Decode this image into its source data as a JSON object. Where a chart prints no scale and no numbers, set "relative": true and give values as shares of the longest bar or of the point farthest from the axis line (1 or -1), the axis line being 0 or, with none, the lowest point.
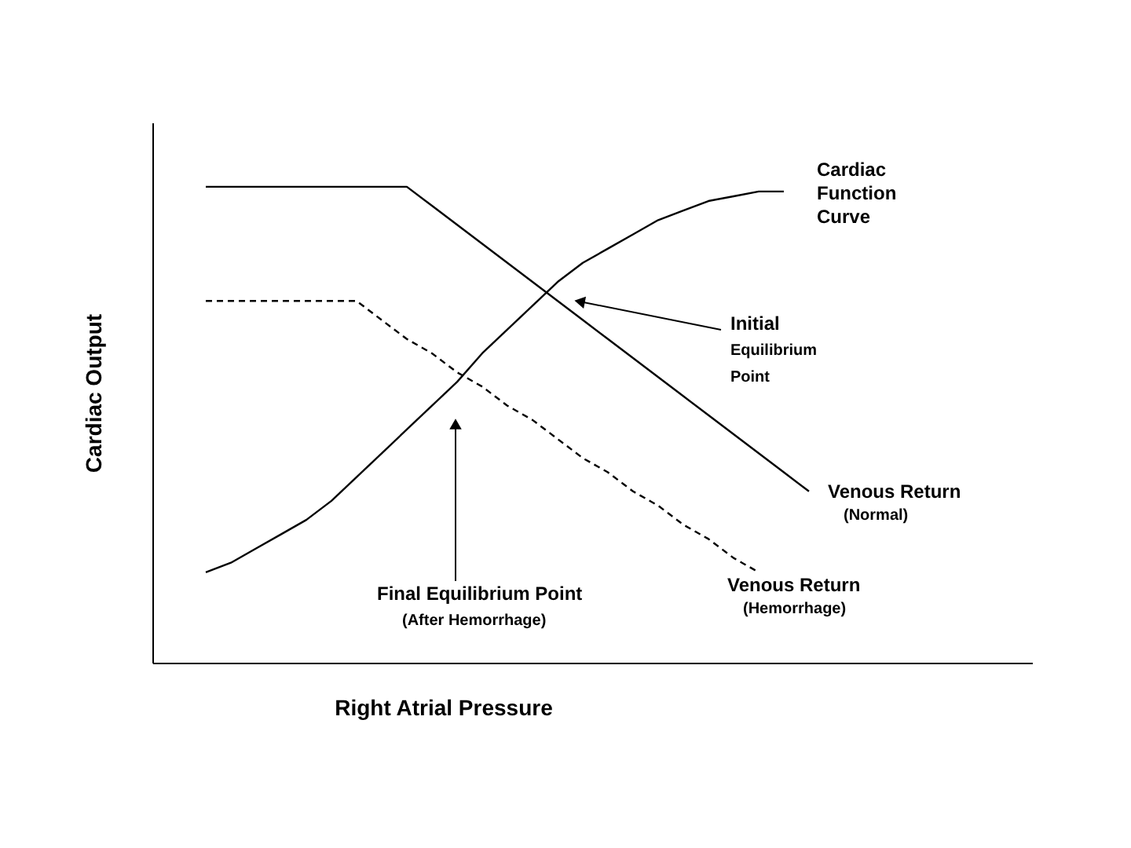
{
  "chart_data": {
    "type": "line",
    "relative": true,
    "grid": false,
    "tick_labels": false,
    "xlabel": "Right Atrial Pressure",
    "ylabel": "Cardiac Output",
    "categories": [
      null,
      null,
      null,
      null,
      null,
      null,
      null,
      null,
      null,
      null,
      null,
      null,
      null,
      null,
      null,
      null,
      null,
      null,
      null,
      null,
      null,
      null,
      null,
      null,
      null
    ],
    "series": [
      {
        "name": "Cardiac Function Curve",
        "color": "#000000",
        "line_style": "solid",
        "values": [
          0.19,
          0.21,
          0.24,
          0.27,
          0.3,
          0.34,
          0.39,
          0.44,
          0.49,
          0.54,
          0.59,
          0.65,
          0.7,
          0.75,
          0.8,
          0.84,
          0.87,
          0.9,
          0.93,
          0.95,
          0.97,
          0.98,
          0.99,
          0.99,
          null
        ]
      },
      {
        "name": "Venous Return (Normal)",
        "color": "#000000",
        "line_style": "solid",
        "values": [
          1.0,
          1.0,
          1.0,
          1.0,
          1.0,
          1.0,
          1.0,
          1.0,
          1.0,
          0.96,
          0.92,
          0.88,
          0.84,
          0.8,
          0.76,
          0.72,
          0.68,
          0.64,
          0.6,
          0.56,
          0.52,
          0.48,
          0.44,
          0.4,
          0.36
        ]
      },
      {
        "name": "Venous Return (Hemorrhage)",
        "color": "#000000",
        "line_style": "dashed",
        "values": [
          0.76,
          0.76,
          0.76,
          0.76,
          0.76,
          0.76,
          0.76,
          0.72,
          0.68,
          0.65,
          0.61,
          0.58,
          0.54,
          0.51,
          0.47,
          0.43,
          0.4,
          0.36,
          0.33,
          0.29,
          0.26,
          0.22,
          0.19,
          null,
          null
        ]
      }
    ],
    "annotations": [
      "Initial Equilibrium Point",
      "Final Equilibrium Point (After Hemorrhage)"
    ]
  }
}
